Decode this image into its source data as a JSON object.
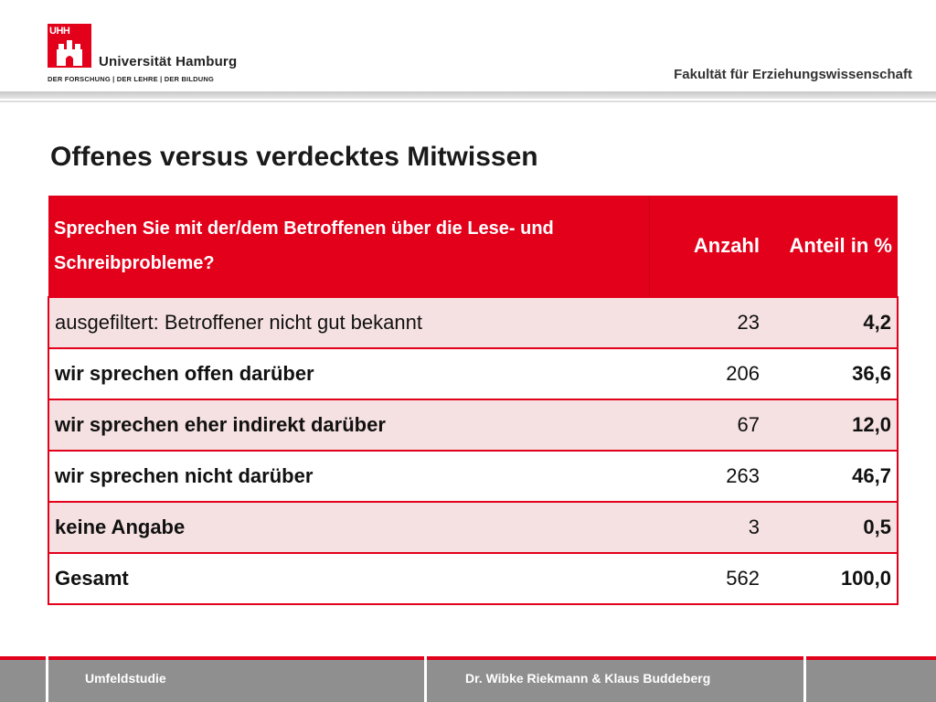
{
  "header": {
    "logo_letters": "UHH",
    "university": "Universität Hamburg",
    "motto": "DER FORSCHUNG | DER LEHRE | DER BILDUNG",
    "faculty": "Fakultät für Erziehungswissenschaft",
    "brand_color": "#e2001a"
  },
  "slide": {
    "title": "Offenes versus verdecktes Mitwissen"
  },
  "table": {
    "headers": {
      "question": "Sprechen Sie mit der/dem Betroffenen über die Lese- und Schreibprobleme?",
      "count": "Anzahl",
      "percent": "Anteil in %"
    },
    "rows": [
      {
        "label": "ausgefiltert: Betroffener nicht gut bekannt",
        "count": "23",
        "percent": "4,2"
      },
      {
        "label": "wir sprechen offen darüber",
        "count": "206",
        "percent": "36,6"
      },
      {
        "label": "wir sprechen eher indirekt darüber",
        "count": "67",
        "percent": "12,0"
      },
      {
        "label": "wir sprechen nicht darüber",
        "count": "263",
        "percent": "46,7"
      },
      {
        "label": "keine Angabe",
        "count": "3",
        "percent": "0,5"
      },
      {
        "label": "Gesamt",
        "count": "562",
        "percent": "100,0"
      }
    ]
  },
  "footer": {
    "left": "Umfeldstudie",
    "center": "Dr. Wibke Riekmann & Klaus Buddeberg"
  }
}
